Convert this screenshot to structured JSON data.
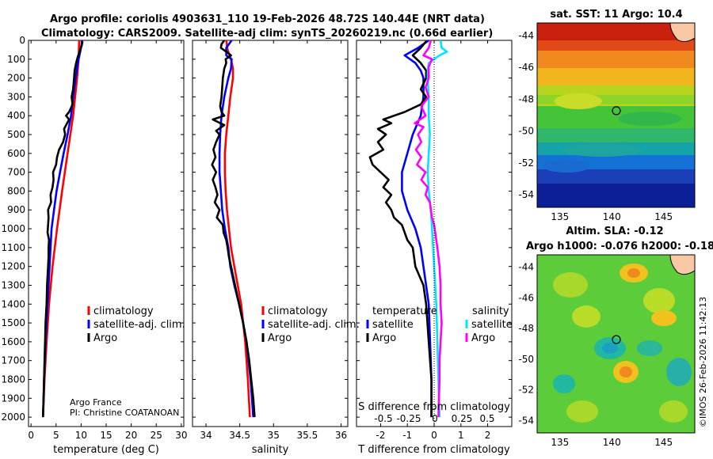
{
  "header": {
    "line1": "Argo profile: coriolis 4903631_110 19-Feb-2026 48.72S 140.44E (NRT data)",
    "line2": "Climatology: CARS2009. Satellite-adj clim: synTS_20260219.nc (0.66d earlier)"
  },
  "credits": {
    "org": "Argo France",
    "pi": "PI: Christine COATANOAN",
    "stamp": "©IMOS 26-Feb-2026 11:42:13"
  },
  "colors": {
    "argo": "#000000",
    "climatology": "#ff0000",
    "satellite_clim": "#0000ff",
    "diff_temp": "#0000ff",
    "diff_sal_sat": "#00e5ff",
    "diff_sal_argo": "#ff00ff"
  },
  "chart_data": [
    {
      "type": "line",
      "id": "temperature",
      "xlabel": "temperature (deg C)",
      "ylim": [
        0,
        2050
      ],
      "xlim": [
        -0.5,
        30.5
      ],
      "xticks": [
        "0",
        "5",
        "10",
        "15",
        "20",
        "25",
        "30"
      ],
      "xtick_values": [
        0,
        5,
        10,
        15,
        20,
        25,
        30
      ],
      "yticks": [
        "0",
        "100",
        "200",
        "300",
        "400",
        "500",
        "600",
        "700",
        "800",
        "900",
        "1000",
        "1100",
        "1200",
        "1300",
        "1400",
        "1500",
        "1600",
        "1700",
        "1800",
        "1900",
        "2000"
      ],
      "ytick_values": [
        0,
        100,
        200,
        300,
        400,
        500,
        600,
        700,
        800,
        900,
        1000,
        1100,
        1200,
        1300,
        1400,
        1500,
        1600,
        1700,
        1800,
        1900,
        2000
      ],
      "legend": [
        "climatology",
        "satellite-adj. clim.",
        "Argo"
      ],
      "series": [
        {
          "name": "climatology",
          "color": "#ff0000",
          "depth": [
            0,
            100,
            200,
            400,
            600,
            800,
            1000,
            1200,
            1400,
            1600,
            1800,
            2000
          ],
          "values": [
            9.6,
            9.5,
            9.2,
            8.4,
            7.3,
            6.2,
            5.2,
            4.3,
            3.6,
            3.1,
            2.7,
            2.4
          ]
        },
        {
          "name": "satellite-adj. clim.",
          "color": "#0000ff",
          "depth": [
            0,
            50,
            100,
            200,
            300,
            400,
            500,
            600,
            700,
            800,
            900,
            1000,
            1100,
            1200,
            1400,
            1600,
            1800,
            2000
          ],
          "values": [
            10.2,
            9.9,
            9.5,
            8.9,
            8.4,
            8.0,
            7.3,
            6.5,
            5.8,
            5.1,
            4.6,
            4.1,
            3.9,
            3.7,
            3.3,
            2.9,
            2.6,
            2.4
          ]
        },
        {
          "name": "Argo",
          "color": "#000000",
          "depth": [
            5,
            30,
            60,
            90,
            120,
            160,
            200,
            260,
            300,
            340,
            380,
            400,
            420,
            440,
            470,
            500,
            540,
            580,
            620,
            660,
            700,
            740,
            780,
            820,
            860,
            900,
            940,
            980,
            1020,
            1060,
            1100,
            1150,
            1200,
            1300,
            1400,
            1500,
            1600,
            1700,
            1800,
            1900,
            2000
          ],
          "values": [
            10.3,
            10.1,
            9.7,
            9.3,
            9.0,
            8.7,
            8.6,
            8.4,
            8.1,
            8.3,
            7.6,
            7.0,
            7.6,
            7.2,
            6.6,
            6.8,
            6.4,
            5.6,
            5.2,
            5.0,
            4.4,
            4.5,
            4.3,
            3.9,
            4.0,
            3.4,
            3.5,
            3.4,
            3.3,
            3.6,
            3.5,
            3.5,
            3.4,
            3.2,
            3.1,
            2.9,
            2.8,
            2.7,
            2.6,
            2.5,
            2.4
          ]
        }
      ]
    },
    {
      "type": "line",
      "id": "salinity",
      "xlabel": "salinity",
      "ylim": [
        0,
        2050
      ],
      "xlim": [
        33.8,
        36.1
      ],
      "xticks": [
        "34",
        "34.5",
        "35",
        "35.5",
        "36"
      ],
      "xtick_values": [
        34,
        34.5,
        35,
        35.5,
        36
      ],
      "legend": [
        "climatology",
        "satellite-adj. clim.",
        "Argo"
      ],
      "series": [
        {
          "name": "climatology",
          "color": "#ff0000",
          "depth": [
            0,
            50,
            100,
            150,
            200,
            300,
            400,
            500,
            600,
            700,
            800,
            900,
            1000,
            1100,
            1200,
            1300,
            1400,
            1600,
            1800,
            2000
          ],
          "values": [
            34.3,
            34.32,
            34.37,
            34.4,
            34.4,
            34.36,
            34.33,
            34.3,
            34.28,
            34.28,
            34.29,
            34.31,
            34.34,
            34.37,
            34.42,
            34.47,
            34.52,
            34.58,
            34.62,
            34.65
          ]
        },
        {
          "name": "satellite-adj. clim.",
          "color": "#0000ff",
          "depth": [
            0,
            40,
            80,
            100,
            150,
            200,
            300,
            400,
            500,
            600,
            700,
            800,
            900,
            1000,
            1100,
            1200,
            1300,
            1400,
            1500,
            1600,
            1700,
            1800,
            1900,
            2000
          ],
          "values": [
            34.38,
            34.3,
            34.3,
            34.38,
            34.37,
            34.33,
            34.27,
            34.23,
            34.21,
            34.2,
            34.2,
            34.22,
            34.24,
            34.28,
            34.33,
            34.36,
            34.42,
            34.49,
            34.55,
            34.6,
            34.63,
            34.66,
            34.68,
            34.7
          ]
        },
        {
          "name": "Argo",
          "color": "#000000",
          "depth": [
            0,
            20,
            40,
            60,
            80,
            100,
            120,
            150,
            200,
            250,
            300,
            350,
            380,
            400,
            420,
            450,
            480,
            500,
            540,
            580,
            620,
            660,
            700,
            740,
            780,
            820,
            860,
            900,
            940,
            980,
            1020,
            1060,
            1100,
            1150,
            1200,
            1300,
            1400,
            1500,
            1600,
            1700,
            1800,
            1900,
            2000
          ],
          "values": [
            34.27,
            34.23,
            34.22,
            34.3,
            34.37,
            34.29,
            34.3,
            34.27,
            34.25,
            34.24,
            34.23,
            34.21,
            34.23,
            34.27,
            34.1,
            34.27,
            34.15,
            34.2,
            34.15,
            34.11,
            34.14,
            34.09,
            34.15,
            34.1,
            34.14,
            34.17,
            34.13,
            34.2,
            34.16,
            34.25,
            34.26,
            34.3,
            34.32,
            34.34,
            34.37,
            34.43,
            34.49,
            34.55,
            34.6,
            34.64,
            34.67,
            34.7,
            34.72
          ]
        }
      ]
    },
    {
      "type": "line",
      "id": "difference",
      "xlabel": "T difference from climatology",
      "xlabel_top": "S difference from climatology",
      "ylim": [
        0,
        2050
      ],
      "xlim": [
        -2.9,
        2.9
      ],
      "xticks": [
        "-2",
        "-1",
        "0",
        "1",
        "2"
      ],
      "xtick_values": [
        -2,
        -1,
        0,
        1,
        2
      ],
      "s_ticks": [
        "-0.5",
        "-0.25",
        "0",
        "0.25",
        "0.5"
      ],
      "legend_temperature_title": "temperature",
      "legend_salinity_title": "salinity",
      "legend_temperature": [
        "satellite",
        "Argo"
      ],
      "legend_salinity": [
        "satellite",
        "Argo"
      ],
      "series": [
        {
          "name": "temperature satellite",
          "color": "#0000ff",
          "depth": [
            0,
            40,
            80,
            120,
            160,
            200,
            300,
            400,
            500,
            600,
            700,
            800,
            900,
            1000,
            1100,
            1200,
            1400,
            1600,
            1800,
            2000
          ],
          "values": [
            -0.2,
            -0.6,
            -1.1,
            -0.7,
            -0.5,
            -0.4,
            -0.4,
            -0.5,
            -0.8,
            -1.0,
            -1.2,
            -1.2,
            -1.0,
            -0.7,
            -0.5,
            -0.4,
            -0.2,
            -0.15,
            -0.1,
            -0.1
          ]
        },
        {
          "name": "temperature Argo",
          "color": "#000000",
          "depth": [
            5,
            40,
            80,
            120,
            160,
            200,
            260,
            300,
            340,
            380,
            420,
            440,
            470,
            500,
            540,
            580,
            620,
            660,
            700,
            740,
            780,
            820,
            860,
            900,
            940,
            980,
            1020,
            1060,
            1100,
            1200,
            1300,
            1400,
            1600,
            1800,
            2000
          ],
          "values": [
            -0.3,
            -0.5,
            -0.8,
            -0.5,
            -0.3,
            -0.3,
            -0.5,
            -0.3,
            -0.5,
            -1.1,
            -1.9,
            -1.6,
            -2.1,
            -1.8,
            -2.1,
            -1.9,
            -2.4,
            -2.3,
            -2.0,
            -1.7,
            -1.9,
            -1.6,
            -1.8,
            -1.6,
            -1.5,
            -1.2,
            -1.1,
            -1.0,
            -0.8,
            -0.7,
            -0.4,
            -0.3,
            -0.2,
            -0.1,
            -0.1
          ]
        },
        {
          "name": "salinity satellite",
          "color": "#00e5ff",
          "depth": [
            0,
            40,
            60,
            80,
            120,
            160,
            200,
            300,
            400,
            500,
            600,
            700,
            800,
            900,
            1000,
            1200,
            1400,
            1600,
            1800,
            2000
          ],
          "values": [
            0.06,
            0.07,
            0.12,
            0.05,
            -0.05,
            -0.06,
            -0.06,
            -0.05,
            -0.05,
            -0.04,
            -0.05,
            -0.06,
            -0.05,
            -0.03,
            -0.02,
            0.0,
            0.02,
            0.03,
            0.04,
            0.05
          ]
        },
        {
          "name": "salinity Argo",
          "color": "#ff00ff",
          "depth": [
            0,
            40,
            80,
            100,
            140,
            200,
            250,
            300,
            350,
            400,
            440,
            460,
            500,
            540,
            580,
            620,
            660,
            700,
            740,
            780,
            820,
            860,
            900,
            940,
            980,
            1020,
            1060,
            1100,
            1200,
            1300,
            1400,
            1500,
            1600,
            1700,
            1800,
            2000
          ],
          "values": [
            -0.03,
            -0.05,
            -0.1,
            -0.02,
            -0.05,
            -0.05,
            -0.08,
            -0.05,
            -0.12,
            -0.08,
            -0.18,
            -0.1,
            -0.15,
            -0.12,
            -0.17,
            -0.12,
            -0.16,
            -0.08,
            -0.12,
            -0.06,
            -0.08,
            -0.04,
            -0.03,
            -0.02,
            0.0,
            0.01,
            0.02,
            0.03,
            0.05,
            0.06,
            0.06,
            0.07,
            0.06,
            0.05,
            0.05,
            0.04
          ]
        }
      ]
    },
    {
      "type": "heatmap",
      "id": "sst_map",
      "title": "sat. SST: 11 Argo: 10.4",
      "xticks": [
        "135",
        "140",
        "145"
      ],
      "xtick_values": [
        135,
        140,
        145
      ],
      "yticks": [
        "-44",
        "-46",
        "-48",
        "-50",
        "-52",
        "-54"
      ],
      "ytick_values": [
        -44,
        -46,
        -48,
        -50,
        -52,
        -54
      ],
      "xlim": [
        132.8,
        148.0
      ],
      "ylim": [
        -54.8,
        -43.2
      ],
      "argo_position": [
        140.44,
        -48.72
      ]
    },
    {
      "type": "heatmap",
      "id": "sla_map",
      "title": "Altim. SLA: -0.12",
      "subtitle": "Argo h1000: -0.076 h2000: -0.18",
      "xticks": [
        "135",
        "140",
        "145"
      ],
      "xtick_values": [
        135,
        140,
        145
      ],
      "yticks": [
        "-44",
        "-46",
        "-48",
        "-50",
        "-52",
        "-54"
      ],
      "ytick_values": [
        -44,
        -46,
        -48,
        -50,
        -52,
        -54
      ],
      "xlim": [
        132.8,
        148.0
      ],
      "ylim": [
        -54.8,
        -43.2
      ],
      "argo_position": [
        140.44,
        -48.72
      ]
    }
  ]
}
